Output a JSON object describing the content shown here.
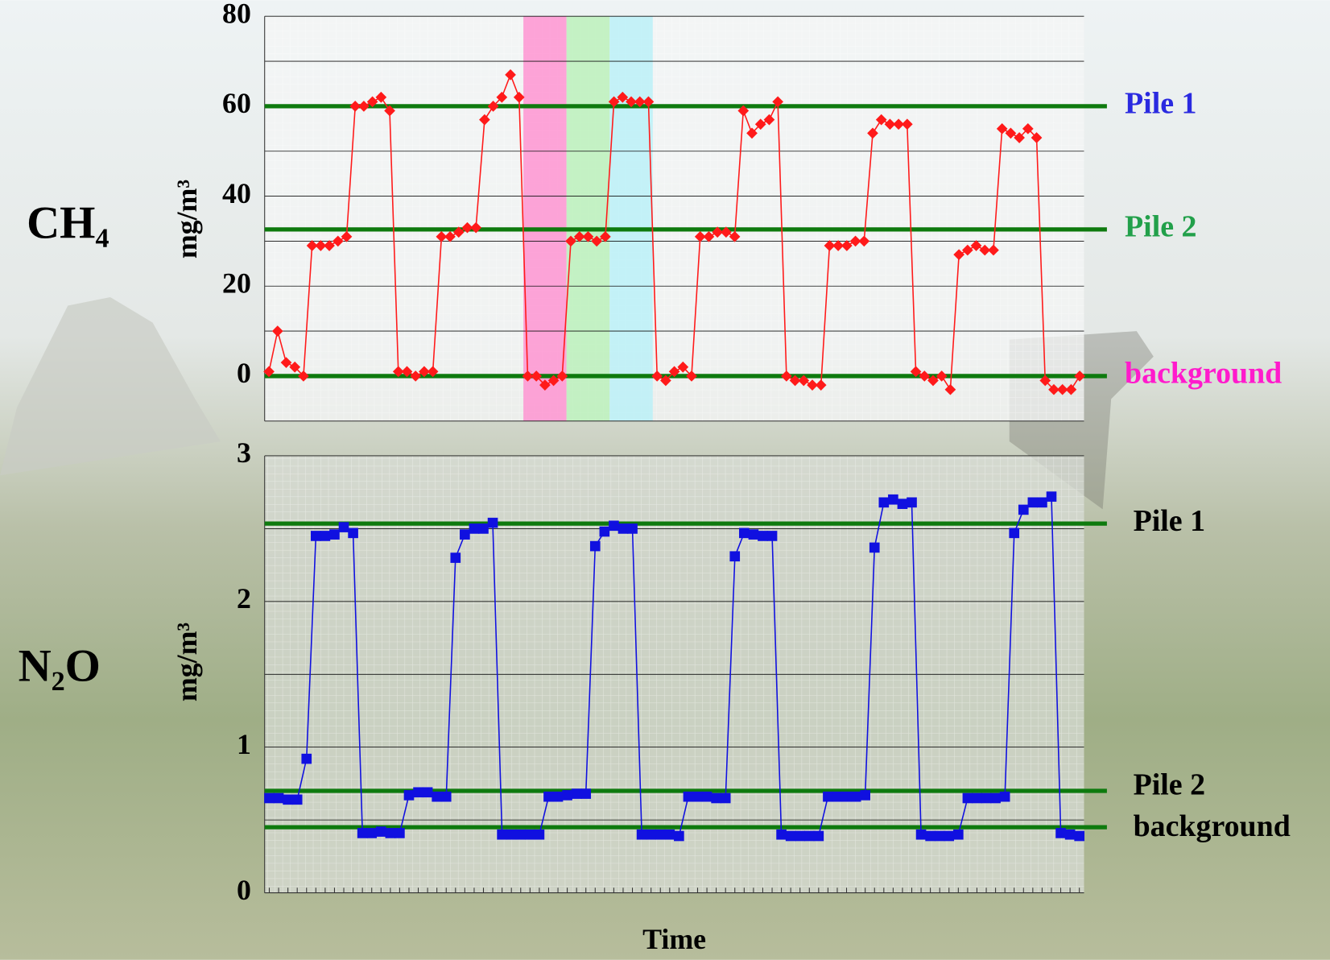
{
  "chart_data": [
    {
      "type": "line",
      "label": "CH₄",
      "ylabel": "mg/m³",
      "color": "#ff1a1a",
      "marker": "diamond",
      "values": [
        1,
        10,
        3,
        2,
        0,
        29,
        29,
        29,
        30,
        31,
        60,
        60,
        61,
        62,
        59,
        1,
        1,
        0,
        1,
        1,
        31,
        31,
        32,
        33,
        33,
        57,
        60,
        62,
        67,
        62,
        0,
        0,
        -2,
        -1,
        0,
        30,
        31,
        31,
        30,
        31,
        61,
        62,
        61,
        61,
        61,
        0,
        -1,
        1,
        2,
        0,
        31,
        31,
        32,
        32,
        31,
        59,
        54,
        56,
        57,
        61,
        0,
        -1,
        -1,
        -2,
        -2,
        29,
        29,
        29,
        30,
        30,
        54,
        57,
        56,
        56,
        56,
        1,
        0,
        -1,
        0,
        -3,
        27,
        28,
        29,
        28,
        28,
        55,
        54,
        53,
        55,
        53,
        -1,
        -3,
        -3,
        -3,
        0
      ],
      "ylim": [
        -10,
        80
      ],
      "yticks": [
        0,
        20,
        40,
        60,
        80
      ],
      "ygrid": [
        -10,
        0,
        10,
        20,
        30,
        40,
        50,
        60,
        70,
        80
      ],
      "highlights": [
        {
          "from": 30,
          "to": 34,
          "color": "#ff8fcf"
        },
        {
          "from": 35,
          "to": 39,
          "color": "#b8f0b8"
        },
        {
          "from": 40,
          "to": 44,
          "color": "#b8f0f8"
        }
      ],
      "reference_lines": [
        {
          "value": 60,
          "label": "Pile 1",
          "label_color": "#2a2ae0"
        },
        {
          "value": 32.6,
          "label": "Pile 2",
          "label_color": "#22a04a"
        },
        {
          "value": 0,
          "label": "background",
          "label_color": "#ff1acc"
        }
      ],
      "reference_color": "#0e7a0e"
    },
    {
      "type": "line",
      "label": "N₂O",
      "ylabel": "mg/m³",
      "xlabel": "Time",
      "color": "#1010e0",
      "marker": "square",
      "values": [
        0.65,
        0.65,
        0.64,
        0.64,
        0.92,
        2.45,
        2.45,
        2.46,
        2.51,
        2.47,
        0.41,
        0.41,
        0.42,
        0.41,
        0.41,
        0.67,
        0.69,
        0.69,
        0.66,
        0.66,
        2.3,
        2.46,
        2.5,
        2.5,
        2.54,
        0.4,
        0.4,
        0.4,
        0.4,
        0.4,
        0.66,
        0.66,
        0.67,
        0.68,
        0.68,
        2.38,
        2.48,
        2.52,
        2.5,
        2.5,
        0.4,
        0.4,
        0.4,
        0.4,
        0.39,
        0.66,
        0.66,
        0.66,
        0.65,
        0.65,
        2.31,
        2.47,
        2.46,
        2.45,
        2.45,
        0.4,
        0.39,
        0.39,
        0.39,
        0.39,
        0.66,
        0.66,
        0.66,
        0.66,
        0.67,
        2.37,
        2.68,
        2.7,
        2.67,
        2.68,
        0.4,
        0.39,
        0.39,
        0.39,
        0.4,
        0.65,
        0.65,
        0.65,
        0.65,
        0.66,
        2.47,
        2.63,
        2.68,
        2.68,
        2.72,
        0.41,
        0.4,
        0.39
      ],
      "ylim": [
        0,
        3
      ],
      "yticks": [
        0,
        1,
        2,
        3
      ],
      "ygrid": [
        0,
        0.5,
        1,
        1.5,
        2,
        2.5,
        3
      ],
      "x_minor_ticks": true,
      "reference_lines": [
        {
          "value": 2.535,
          "label": "Pile 1",
          "label_color": "#000000"
        },
        {
          "value": 0.7,
          "label": "Pile 2",
          "label_color": "#000000"
        },
        {
          "value": 0.45,
          "label": "background",
          "label_color": "#000000"
        }
      ],
      "reference_color": "#0e7a0e"
    }
  ]
}
